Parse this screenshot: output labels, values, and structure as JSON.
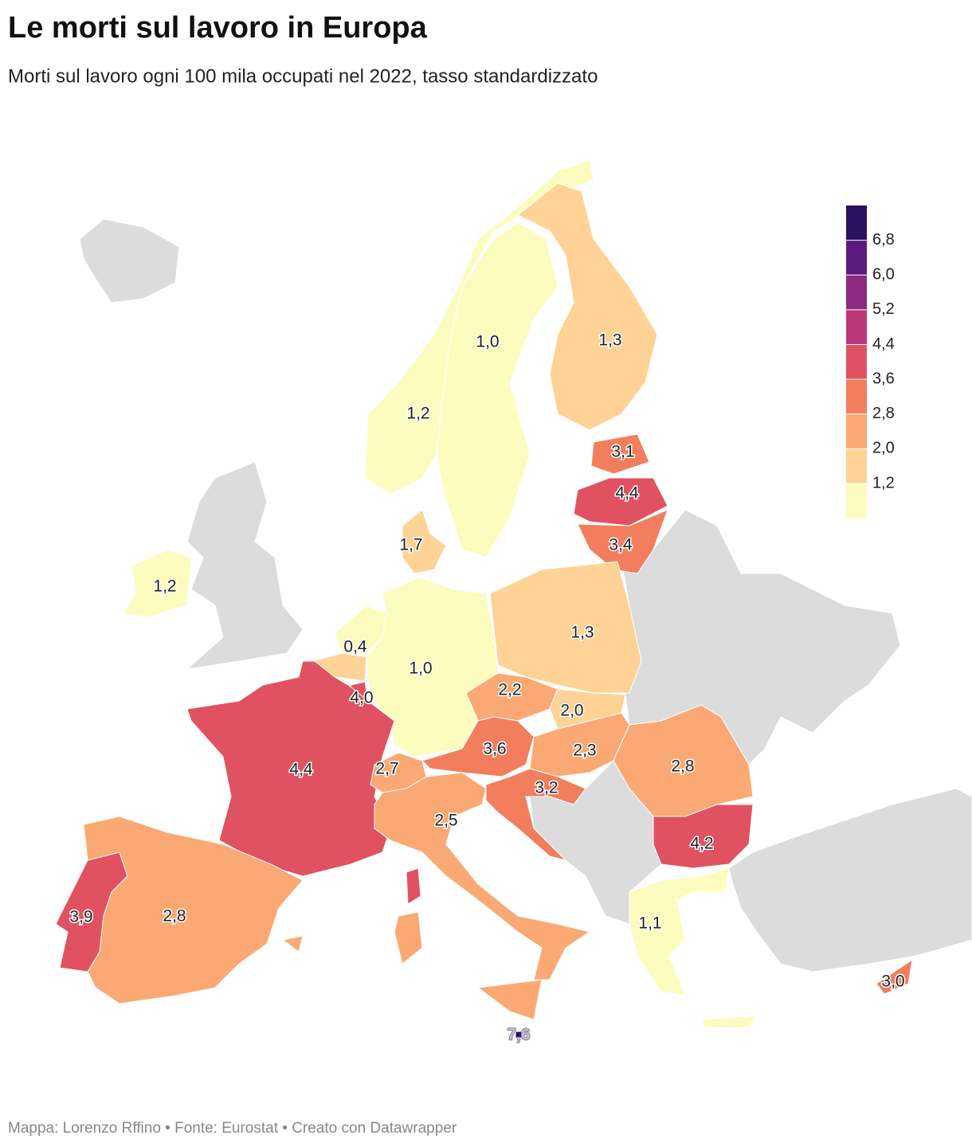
{
  "title": "Le morti sul lavoro in Europa",
  "subtitle": "Morti sul lavoro ogni 100 mila occupati nel 2022, tasso standardizzato",
  "footer": "Mappa: Lorenzo Rffino • Fonte: Eurostat • Creato con Datawrapper",
  "legend": {
    "colors": [
      "#2a1160",
      "#5d1a7e",
      "#8c2a81",
      "#bb3878",
      "#e05262",
      "#f27e5e",
      "#fba974",
      "#fed395",
      "#fdfcbf"
    ],
    "ticks": [
      {
        "value": 6.8,
        "label": "6,8"
      },
      {
        "value": 6.0,
        "label": "6,0"
      },
      {
        "value": 5.2,
        "label": "5,2"
      },
      {
        "value": 4.4,
        "label": "4,4"
      },
      {
        "value": 3.6,
        "label": "3,6"
      },
      {
        "value": 2.8,
        "label": "2,8"
      },
      {
        "value": 2.0,
        "label": "2,0"
      },
      {
        "value": 1.2,
        "label": "1,2"
      }
    ]
  },
  "regions": [
    {
      "value": 1.2,
      "label": "1,2"
    },
    {
      "value": 1.0,
      "label": "1,0"
    },
    {
      "value": 1.3,
      "label": "1,3"
    },
    {
      "value": 3.1,
      "label": "3,1"
    },
    {
      "value": 4.4,
      "label": "4,4"
    },
    {
      "value": 3.4,
      "label": "3,4"
    },
    {
      "value": 1.7,
      "label": "1,7"
    },
    {
      "value": 1.2,
      "label": "1,2"
    },
    {
      "value": 0.4,
      "label": "0,4"
    },
    {
      "value": 1.0,
      "label": "1,0"
    },
    {
      "value": 1.3,
      "label": "1,3"
    },
    {
      "value": 4.0,
      "label": "4,0"
    },
    {
      "value": 2.2,
      "label": "2,2"
    },
    {
      "value": 2.0,
      "label": "2,0"
    },
    {
      "value": 4.4,
      "label": "4,4"
    },
    {
      "value": 3.6,
      "label": "3,6"
    },
    {
      "value": 2.3,
      "label": "2,3"
    },
    {
      "value": 2.8,
      "label": "2,8"
    },
    {
      "value": 2.7,
      "label": "2,7"
    },
    {
      "value": 3.2,
      "label": "3,2"
    },
    {
      "value": 2.5,
      "label": "2,5"
    },
    {
      "value": 4.2,
      "label": "4,2"
    },
    {
      "value": 3.9,
      "label": "3,9"
    },
    {
      "value": 2.8,
      "label": "2,8"
    },
    {
      "value": 1.1,
      "label": "1,1"
    },
    {
      "value": 3.0,
      "label": "3,0"
    },
    {
      "value": 7.6,
      "label": "7,6"
    }
  ]
}
